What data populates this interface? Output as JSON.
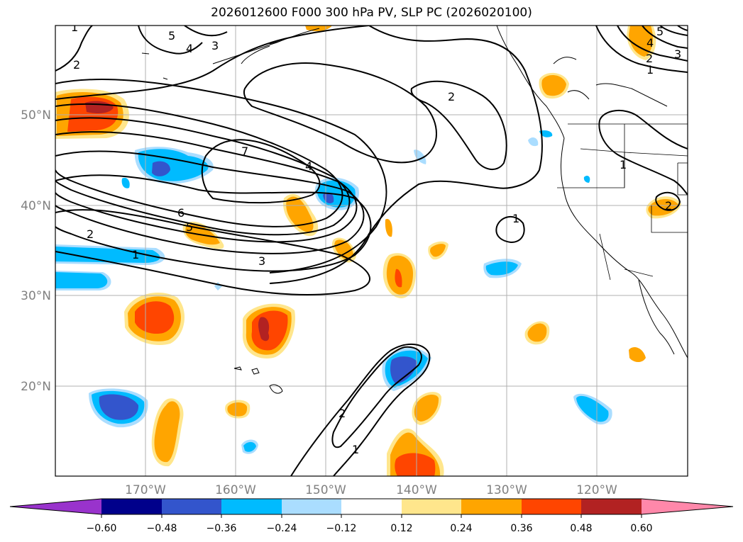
{
  "title": "2026012600 F000 300 hPa PV, SLP PC (2026020100)",
  "map": {
    "lat_labels": [
      "50°N",
      "40°N",
      "30°N",
      "20°N"
    ],
    "lon_labels": [
      "170°W",
      "160°W",
      "150°W",
      "140°W",
      "130°W",
      "120°W"
    ],
    "contour_labels": [
      "1",
      "2",
      "5",
      "4",
      "3",
      "7",
      "4",
      "6",
      "5",
      "2",
      "1",
      "3",
      "2",
      "1",
      "2",
      "1",
      "5",
      "4",
      "3",
      "2",
      "1",
      "1",
      "2"
    ]
  },
  "colorbar": {
    "ticks": [
      "−0.60",
      "−0.48",
      "−0.36",
      "−0.24",
      "−0.12",
      "0.12",
      "0.24",
      "0.36",
      "0.48",
      "0.60"
    ],
    "colors": [
      "#9933cc",
      "#00008b",
      "#3355cc",
      "#00bbff",
      "#aaddff",
      "#ffffff",
      "#ffe68c",
      "#ffa500",
      "#ff4500",
      "#b22222",
      "#ff88aa"
    ]
  }
}
